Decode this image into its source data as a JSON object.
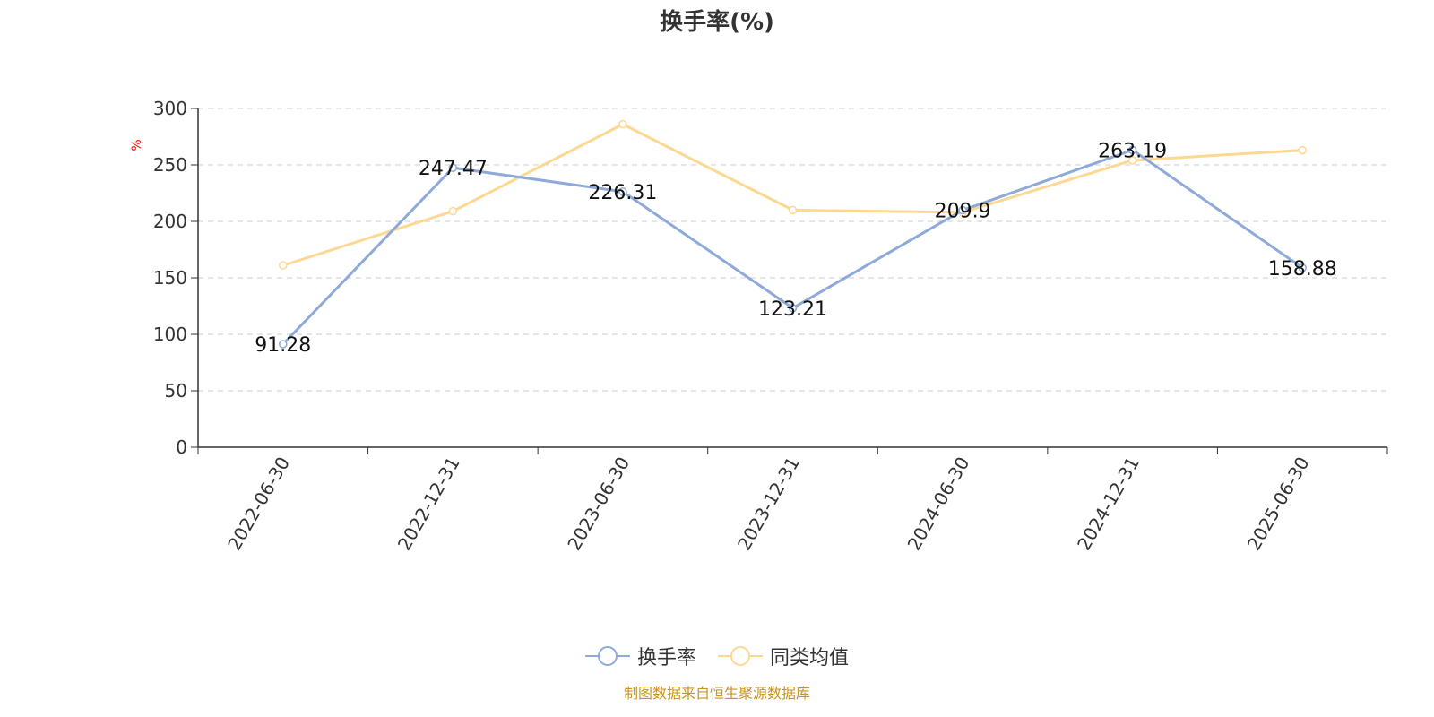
{
  "chart_data": {
    "type": "line",
    "title": "换手率(%)",
    "ylabel": "%",
    "xlabel": "",
    "categories": [
      "2022-06-30",
      "2022-12-31",
      "2023-06-30",
      "2023-12-31",
      "2024-06-30",
      "2024-12-31",
      "2025-06-30"
    ],
    "ylim": [
      0,
      300
    ],
    "yticks": [
      0,
      50,
      100,
      150,
      200,
      250,
      300
    ],
    "grid": true,
    "legend_position": "bottom-center",
    "series": [
      {
        "name": "换手率",
        "color": "#8eaad8",
        "values": [
          91.28,
          247.47,
          226.31,
          123.21,
          209.9,
          263.19,
          158.88
        ],
        "labels_shown": true
      },
      {
        "name": "同类均值",
        "color": "#fcd892",
        "values": [
          161,
          209,
          286,
          210,
          208,
          254,
          263
        ],
        "labels_shown": false
      }
    ]
  },
  "footer": {
    "source": "制图数据来自恒生聚源数据库"
  },
  "colors": {
    "axis": "#333333",
    "grid": "#cccccc",
    "ylabel": "#ff0000",
    "source": "#c8961e"
  }
}
